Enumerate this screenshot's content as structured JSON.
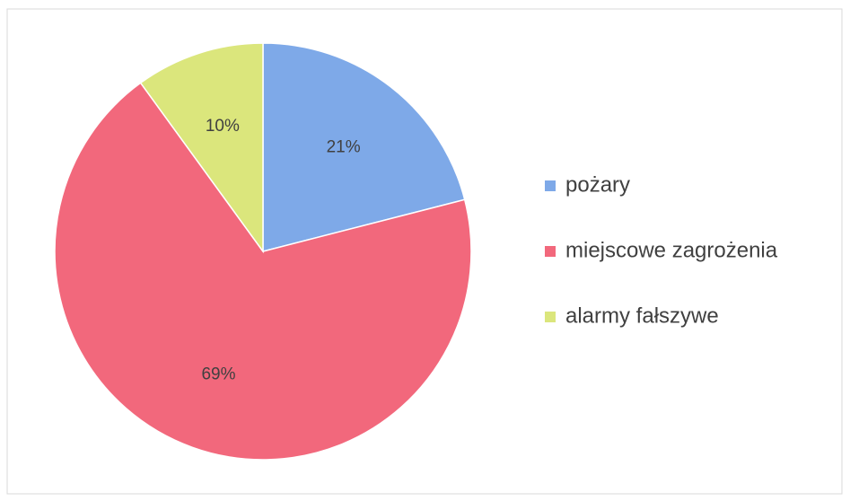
{
  "chart_data": {
    "type": "pie",
    "categories": [
      "pożary",
      "miejscowe zagrożenia",
      "alarmy fałszywe"
    ],
    "values": [
      21,
      69,
      10
    ],
    "value_labels": [
      "21%",
      "69%",
      "10%"
    ],
    "colors": [
      "#7ea9e8",
      "#f2687c",
      "#dbe67c"
    ],
    "legend": "right"
  }
}
